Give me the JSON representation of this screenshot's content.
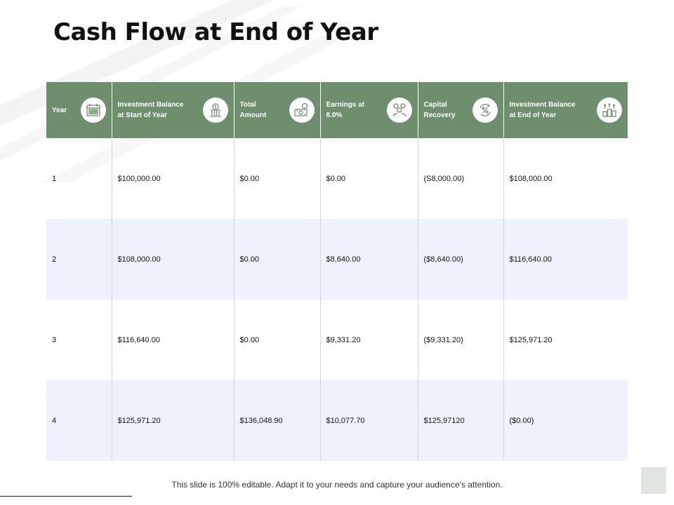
{
  "title": "Cash Flow at End of Year",
  "table": {
    "headers": [
      {
        "label": "Year",
        "icon": "calendar-icon"
      },
      {
        "label": "Investment Balance\nat Start of Year",
        "icon": "bank-icon"
      },
      {
        "label": "Total\n Amount",
        "icon": "money-icon"
      },
      {
        "label": "Earnings at\n8.0%",
        "icon": "coins-hands-icon"
      },
      {
        "label": "Capital\nRecovery",
        "icon": "percent-cycle-icon"
      },
      {
        "label": "Investment Balance\nat End of Year",
        "icon": "growth-coins-icon"
      }
    ],
    "rows": [
      [
        "1",
        "$100,000.00",
        "$0.00",
        "$0.00",
        "(S8,000.00)",
        "$108,000.00"
      ],
      [
        "2",
        "$108,000.00",
        "$0.00",
        "$8,640.00",
        "($8,640.00)",
        "$116,640.00"
      ],
      [
        "3",
        "$116,640.00",
        "$0.00",
        "$9,331.20",
        "($9,331.20)",
        "$125,971.20"
      ],
      [
        "4",
        "$125,971.20",
        "$136,048.90",
        "$10,077.70",
        "$125,97120",
        "($0.00)"
      ]
    ]
  },
  "footer": "This slide is 100% editable. Adapt it to your needs and capture your audience's attention.",
  "colors": {
    "header_bg": "#6e8f6e",
    "alt_row": "#eef2fc"
  }
}
